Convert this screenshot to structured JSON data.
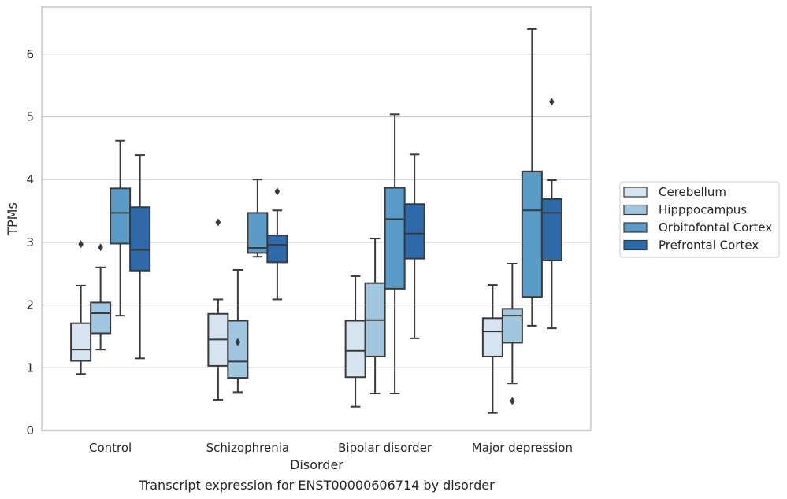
{
  "chart_data": {
    "type": "box",
    "xlabel": "Disorder",
    "ylabel": "TPMs",
    "caption": "Transcript expression for ENST00000606714 by disorder",
    "ylim": [
      0,
      6.75
    ],
    "yticks": [
      "0",
      "1",
      "2",
      "3",
      "4",
      "5",
      "6"
    ],
    "grid": "horizontal",
    "legend_position": "right",
    "categories": [
      "Control",
      "Schizophrenia",
      "Bipolar disorder",
      "Major depression"
    ],
    "series": [
      {
        "name": "Cerebellum",
        "color": "#d6e4f1",
        "boxes": [
          {
            "whisker_low": 0.9,
            "q1": 1.11,
            "median": 1.29,
            "q3": 1.71,
            "whisker_high": 2.31,
            "outliers": [
              2.97
            ]
          },
          {
            "whisker_low": 0.49,
            "q1": 1.03,
            "median": 1.45,
            "q3": 1.86,
            "whisker_high": 2.09,
            "outliers": [
              3.32
            ]
          },
          {
            "whisker_low": 0.38,
            "q1": 0.85,
            "median": 1.27,
            "q3": 1.75,
            "whisker_high": 2.46,
            "outliers": []
          },
          {
            "whisker_low": 0.28,
            "q1": 1.18,
            "median": 1.58,
            "q3": 1.79,
            "whisker_high": 2.32,
            "outliers": []
          }
        ]
      },
      {
        "name": "Hipppocampus",
        "color": "#a1c6df",
        "boxes": [
          {
            "whisker_low": 1.29,
            "q1": 1.55,
            "median": 1.87,
            "q3": 2.04,
            "whisker_high": 2.6,
            "outliers": [
              2.92
            ]
          },
          {
            "whisker_low": 0.61,
            "q1": 0.84,
            "median": 1.1,
            "q3": 1.75,
            "whisker_high": 2.56,
            "outliers": [
              1.41
            ]
          },
          {
            "whisker_low": 0.59,
            "q1": 1.18,
            "median": 1.76,
            "q3": 2.35,
            "whisker_high": 3.06,
            "outliers": []
          },
          {
            "whisker_low": 0.75,
            "q1": 1.4,
            "median": 1.83,
            "q3": 1.94,
            "whisker_high": 2.66,
            "outliers": [
              0.47
            ]
          }
        ]
      },
      {
        "name": "Orbitofontal Cortex",
        "color": "#5b9bc8",
        "boxes": [
          {
            "whisker_low": 1.83,
            "q1": 2.98,
            "median": 3.47,
            "q3": 3.86,
            "whisker_high": 4.62,
            "outliers": []
          },
          {
            "whisker_low": 2.77,
            "q1": 2.83,
            "median": 2.91,
            "q3": 3.47,
            "whisker_high": 4.0,
            "outliers": []
          },
          {
            "whisker_low": 0.59,
            "q1": 2.26,
            "median": 3.37,
            "q3": 3.87,
            "whisker_high": 5.04,
            "outliers": []
          },
          {
            "whisker_low": 1.67,
            "q1": 2.13,
            "median": 3.51,
            "q3": 4.13,
            "whisker_high": 6.4,
            "outliers": []
          }
        ]
      },
      {
        "name": "Prefrontal Cortex",
        "color": "#2e6aaa",
        "boxes": [
          {
            "whisker_low": 1.15,
            "q1": 2.55,
            "median": 2.88,
            "q3": 3.56,
            "whisker_high": 4.39,
            "outliers": []
          },
          {
            "whisker_low": 2.09,
            "q1": 2.68,
            "median": 2.96,
            "q3": 3.11,
            "whisker_high": 3.51,
            "outliers": [
              3.81
            ]
          },
          {
            "whisker_low": 1.47,
            "q1": 2.74,
            "median": 3.14,
            "q3": 3.61,
            "whisker_high": 4.4,
            "outliers": []
          },
          {
            "whisker_low": 1.63,
            "q1": 2.71,
            "median": 3.47,
            "q3": 3.69,
            "whisker_high": 3.99,
            "outliers": [
              5.24
            ]
          }
        ]
      }
    ]
  }
}
